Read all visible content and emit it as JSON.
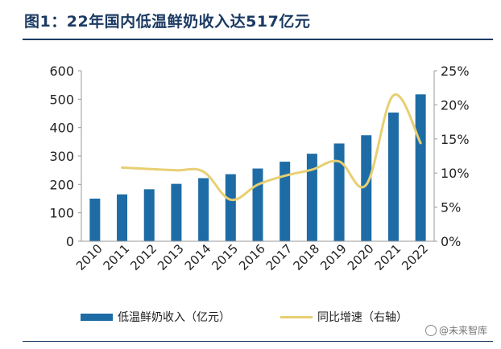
{
  "figure": {
    "title": "图1：22年国内低温鲜奶收入达517亿元"
  },
  "watermark": "@未来智库",
  "chart_data": {
    "type": "bar",
    "categories": [
      "2010",
      "2011",
      "2012",
      "2013",
      "2014",
      "2015",
      "2016",
      "2017",
      "2018",
      "2019",
      "2020",
      "2021",
      "2022"
    ],
    "series": [
      {
        "name": "低温鲜奶收入（亿元）",
        "type": "bar",
        "axis": "left",
        "color": "#1e6ca5",
        "values": [
          150,
          165,
          183,
          202,
          222,
          236,
          256,
          280,
          308,
          344,
          373,
          453,
          517
        ]
      },
      {
        "name": "同比增速（右轴）",
        "type": "line",
        "axis": "right",
        "color": "#e8cf72",
        "values": [
          null,
          10.8,
          10.6,
          10.4,
          10.2,
          6.1,
          8.3,
          9.6,
          10.5,
          11.7,
          8.3,
          21.4,
          14.4
        ]
      }
    ],
    "y_left": {
      "min": 0,
      "max": 600,
      "ticks": [
        0,
        100,
        200,
        300,
        400,
        500,
        600
      ],
      "tick_labels": [
        "0",
        "100",
        "200",
        "300",
        "400",
        "500",
        "600"
      ]
    },
    "y_right": {
      "min": 0,
      "max": 25,
      "ticks": [
        0,
        5,
        10,
        15,
        20,
        25
      ],
      "tick_labels": [
        "0%",
        "5%",
        "10%",
        "15%",
        "20%",
        "25%"
      ]
    },
    "xlabel": "",
    "ylabel": "",
    "grid": false,
    "legend": "bottom"
  }
}
